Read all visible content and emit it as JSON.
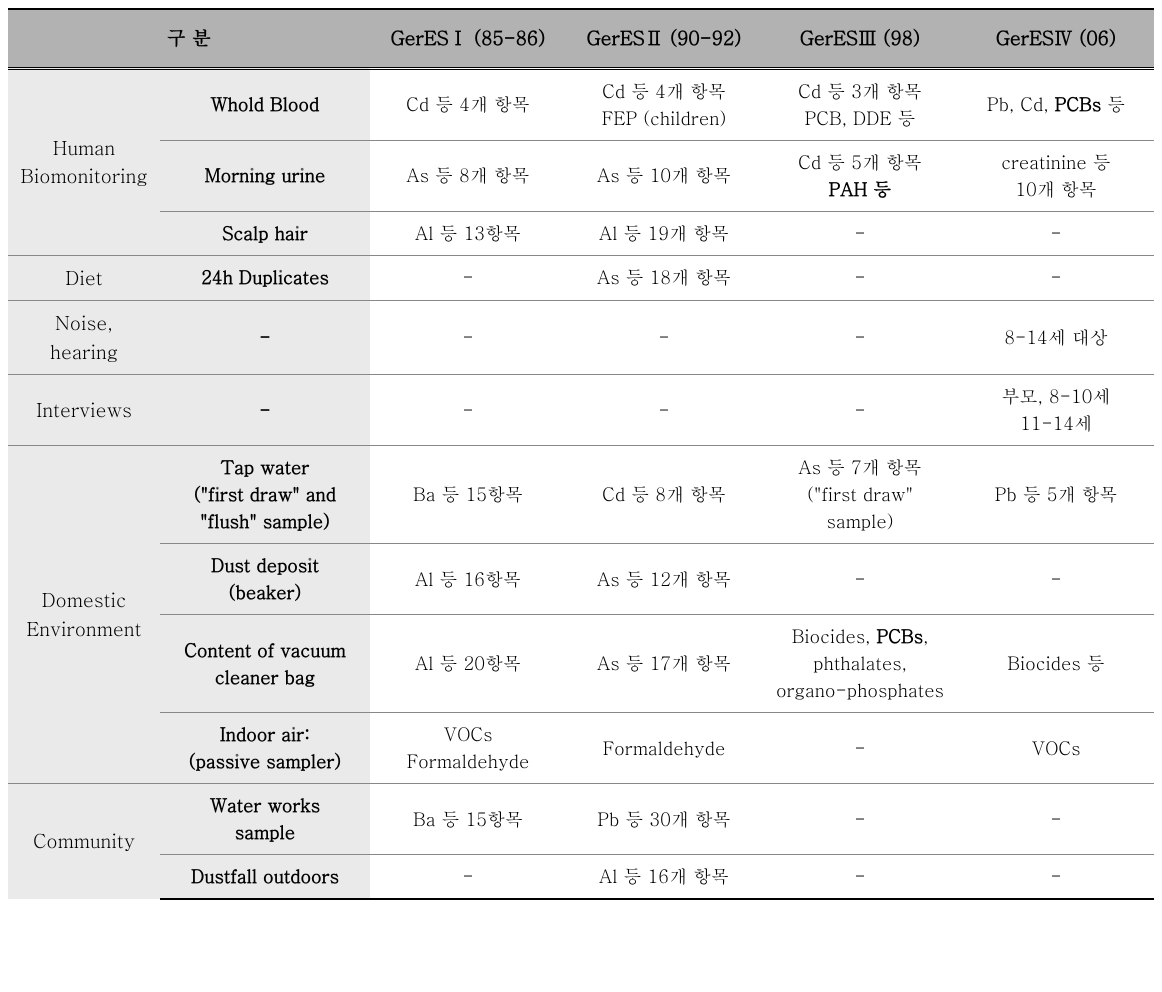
{
  "table": {
    "background_color": "#ffffff",
    "header_bg": "#b2b2b2",
    "category_bg": "#eaeaea",
    "border_color_major": "#000000",
    "border_color_minor": "#888888",
    "col_widths": [
      "152px",
      "210px",
      "196px",
      "196px",
      "196px",
      "196px"
    ],
    "header_fontsize": 19,
    "cell_fontsize": 18,
    "headers": [
      "구 분",
      "GerESⅠ (85-86)",
      "GerESⅡ (90-92)",
      "GerESⅢ (98)",
      "GerESⅣ (06)"
    ],
    "rows": [
      {
        "cat": "Human Biomonitoring",
        "cat_span": 3,
        "sub": "Whold Blood",
        "c1": "Cd 등 4개 항목",
        "c2": "Cd 등 4개 항목\nFEP (children)",
        "c3": "Cd 등 3개 항목\nPCB, DDE 등",
        "c4_html": "Pb, Cd, <b>PCBs</b> 등"
      },
      {
        "sub": "Morning urine",
        "c1": "As 등 8개 항목",
        "c2": "As 등 10개 항목",
        "c3_html": "Cd 등 5개 항목<br><b>PAH 등</b>",
        "c4": "creatinine 등\n10개 항목"
      },
      {
        "sub": "Scalp hair",
        "c1": "Al 등 13항목",
        "c2": "Al 등 19개 항목",
        "c3": "-",
        "c4": "-"
      },
      {
        "cat": "Diet",
        "cat_span": 1,
        "sub": "24h Duplicates",
        "c1": "-",
        "c2": "As 등 18개 항목",
        "c3": "-",
        "c4": "-"
      },
      {
        "cat": "Noise,\nhearing",
        "cat_span": 1,
        "sub": "-",
        "c1": "-",
        "c2": "-",
        "c3": "-",
        "c4": "8-14세 대상"
      },
      {
        "cat": "Interviews",
        "cat_span": 1,
        "sub": "-",
        "c1": "-",
        "c2": "-",
        "c3": "-",
        "c4": "부모, 8-10세\n11-14세"
      },
      {
        "cat": "Domestic Environment",
        "cat_span": 4,
        "sub": "Tap water\n(\"first draw\" and \"flush\" sample)",
        "c1": "Ba 등 15항목",
        "c2": "Cd 등 8개 항목",
        "c3": "As 등 7개 항목\n(\"first draw\"\nsample)",
        "c4": "Pb 등 5개 항목"
      },
      {
        "sub": "Dust deposit\n(beaker)",
        "c1": "Al 등 16항목",
        "c2": "As 등 12개 항목",
        "c3": "-",
        "c4": "-"
      },
      {
        "sub": "Content of vacuum cleaner bag",
        "c1": "Al 등 20항목",
        "c2": "As 등 17개 항목",
        "c3_html": "Biocides, <b>PCBs</b>,<br>phthalates,<br>organo-phosphates",
        "c4": "Biocides 등"
      },
      {
        "sub": "Indoor air:\n(passive sampler)",
        "c1": "VOCs\nFormaldehyde",
        "c2": "Formaldehyde",
        "c3": "-",
        "c4": "VOCs"
      },
      {
        "cat": "Community",
        "cat_span": 2,
        "sub": "Water works\nsample",
        "c1": "Ba 등 15항목",
        "c2": "Pb 등 30개 항목",
        "c3": "-",
        "c4": "-"
      },
      {
        "sub": "Dustfall outdoors",
        "c1": "-",
        "c2": "Al 등 16개 항목",
        "c3": "-",
        "c4": "-"
      }
    ]
  }
}
